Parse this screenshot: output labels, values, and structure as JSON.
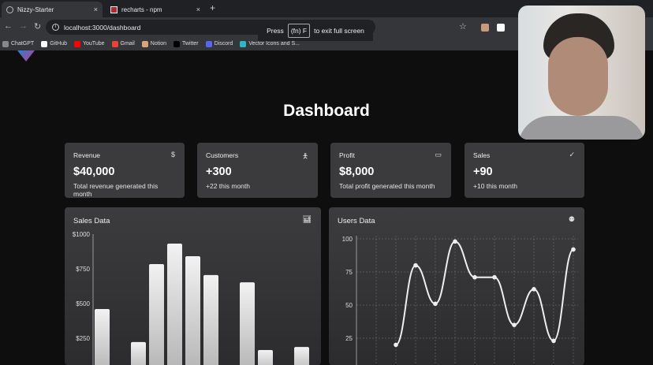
{
  "browser": {
    "tabs": [
      {
        "label": "Nizzy-Starter",
        "active": true
      },
      {
        "label": "recharts - npm",
        "active": false
      }
    ],
    "new_tab": "+",
    "close": "×",
    "url": "localhost:3000/dashboard",
    "fullscreen_notice": {
      "press": "Press",
      "key": "(fn) F",
      "rest": "to exit full screen"
    },
    "bookmarks": [
      {
        "label": "ChatGPT",
        "color": "#888888"
      },
      {
        "label": "GitHub",
        "color": "#ffffff"
      },
      {
        "label": "YouTube",
        "color": "#ff0000"
      },
      {
        "label": "Gmail",
        "color": "#ea4335"
      },
      {
        "label": "Notion",
        "color": "#d9a47a"
      },
      {
        "label": "Twitter",
        "color": "#000000"
      },
      {
        "label": "Discord",
        "color": "#5865f2"
      },
      {
        "label": "Vector Icons and S...",
        "color": "#2bb8c9"
      }
    ]
  },
  "page": {
    "title": "Dashboard"
  },
  "cards": [
    {
      "label": "Revenue",
      "icon": "dollar-icon",
      "glyph": "$",
      "value": "$40,000",
      "sub": "Total revenue generated this month"
    },
    {
      "label": "Customers",
      "icon": "person-icon",
      "glyph": "🯅",
      "value": "+300",
      "sub": "+22 this month"
    },
    {
      "label": "Profit",
      "icon": "credit-card-icon",
      "glyph": "▭",
      "value": "$8,000",
      "sub": "Total profit generated this month"
    },
    {
      "label": "Sales",
      "icon": "check-icon",
      "glyph": "✓",
      "value": "+90",
      "sub": "+10 this month"
    }
  ],
  "chart_data": [
    {
      "type": "bar",
      "title": "Sales Data",
      "icon": "bar-chart-icon",
      "yticks": [
        "$250",
        "$500",
        "$750",
        "$1000"
      ],
      "ylim": [
        0,
        1000
      ],
      "values": [
        460,
        null,
        222,
        784,
        932,
        841,
        705,
        null,
        653,
        165,
        null,
        187
      ],
      "color": "#e0e0e0"
    },
    {
      "type": "line",
      "title": "Users Data",
      "icon": "user-icon",
      "yticks": [
        "25",
        "50",
        "75",
        "100"
      ],
      "ylim": [
        0,
        100
      ],
      "grid": true,
      "values": [
        null,
        null,
        20,
        80,
        51,
        98,
        71,
        71,
        35,
        62,
        23,
        92
      ],
      "color": "#eeeeee"
    }
  ]
}
